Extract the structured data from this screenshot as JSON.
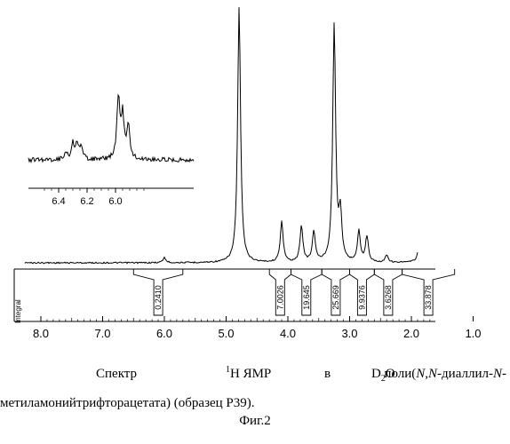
{
  "chart_data": {
    "type": "line",
    "title": "",
    "xlabel": "",
    "ylabel": "",
    "x_reversed": true,
    "main": {
      "xlim": [
        8.2,
        0.9
      ],
      "ticks": [
        "8.0",
        "7.0",
        "6.0",
        "5.0",
        "4.0",
        "3.0",
        "2.0",
        "1.0"
      ],
      "tick_values": [
        8.0,
        7.0,
        6.0,
        5.0,
        4.0,
        3.0,
        2.0,
        1.0
      ],
      "peaks": [
        {
          "ppm": 6.0,
          "height": 0.02
        },
        {
          "ppm": 4.79,
          "height": 1.0
        },
        {
          "ppm": 4.1,
          "height": 0.16
        },
        {
          "ppm": 3.78,
          "height": 0.14
        },
        {
          "ppm": 3.58,
          "height": 0.12
        },
        {
          "ppm": 3.25,
          "height": 0.93
        },
        {
          "ppm": 3.15,
          "height": 0.18
        },
        {
          "ppm": 2.85,
          "height": 0.12
        },
        {
          "ppm": 2.72,
          "height": 0.1
        },
        {
          "ppm": 2.4,
          "height": 0.03
        },
        {
          "ppm": 1.85,
          "height": 0.15
        },
        {
          "ppm": 1.62,
          "height": 0.12
        }
      ]
    },
    "inset": {
      "xlim": [
        6.55,
        5.78
      ],
      "ticks": [
        "6.4",
        "6.2",
        "6.0"
      ],
      "tick_values": [
        6.4,
        6.2,
        6.0
      ],
      "peaks": [
        {
          "ppm": 6.35,
          "height": 0.1
        },
        {
          "ppm": 6.3,
          "height": 0.2
        },
        {
          "ppm": 6.27,
          "height": 0.22
        },
        {
          "ppm": 6.24,
          "height": 0.15
        },
        {
          "ppm": 5.98,
          "height": 0.8
        },
        {
          "ppm": 5.95,
          "height": 0.55
        },
        {
          "ppm": 5.91,
          "height": 0.45
        }
      ]
    },
    "integral_label": "Integral",
    "integrals": [
      {
        "value": "0.2410",
        "from": 6.5,
        "to": 5.7
      },
      {
        "value": "7.0026",
        "from": 4.3,
        "to": 3.95
      },
      {
        "value": "19.645",
        "from": 3.95,
        "to": 3.45
      },
      {
        "value": "25.669",
        "from": 3.45,
        "to": 3.0
      },
      {
        "value": "9.9376",
        "from": 3.0,
        "to": 2.6
      },
      {
        "value": "3.6268",
        "from": 2.6,
        "to": 2.15
      },
      {
        "value": "33.878",
        "from": 2.15,
        "to": 1.3
      }
    ]
  },
  "caption": {
    "line1": {
      "word1": "Спектр",
      "sup": "1",
      "word2": "H ЯМР",
      "word3": "в",
      "d": "D",
      "sub": "2",
      "o": "O",
      "poly_prefix": "поли(",
      "n1": "N",
      "comma": ",",
      "n2": "N",
      "mid": "-диаллил-",
      "n3": "N",
      "dash": "-"
    },
    "line2": "метиламонийтрифторацетата) (образец Р39).",
    "line3": "Фиг.2"
  }
}
